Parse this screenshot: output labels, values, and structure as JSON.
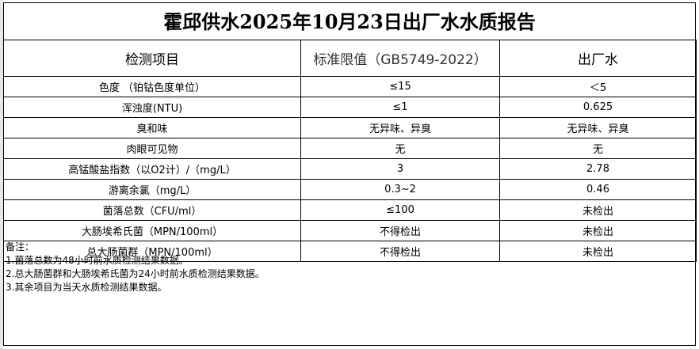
{
  "title": "霍邱供水2025年10月23日出厂水水质报告",
  "headers": [
    "检测项目",
    "标准限值（GB5749-2022）",
    "出厂水"
  ],
  "rows": [
    [
      "色度 （铂钴色度单位）",
      "≤15",
      "＜5"
    ],
    [
      "浑浊度(NTU)",
      "≤1",
      "0.625"
    ],
    [
      "臭和味",
      "无异味、异臭",
      "无异味、异臭"
    ],
    [
      "肉眼可见物",
      "无",
      "无"
    ],
    [
      "高锰酸盐指数（以O2计）/（mg/L）",
      "3",
      "2.78"
    ],
    [
      "游离余氯（mg/L）",
      "0.3~2",
      "0.46"
    ],
    [
      "菌落总数（CFU/ml）",
      "≤100",
      "未检出"
    ],
    [
      "大肠埃希氏菌（MPN/100ml）",
      "不得检出",
      "未检出"
    ],
    [
      "总大肠菌群（MPN/100ml）",
      "不得检出",
      "未检出"
    ]
  ],
  "notes": [
    "备注：",
    "1.菌落总数为48小时前水质检测结果数据。",
    "2.总大肠菌群和大肠埃希氏菌为24小时前水质检测结果数据。",
    "3.其余项目为当天水质检测结果数据。"
  ]
}
